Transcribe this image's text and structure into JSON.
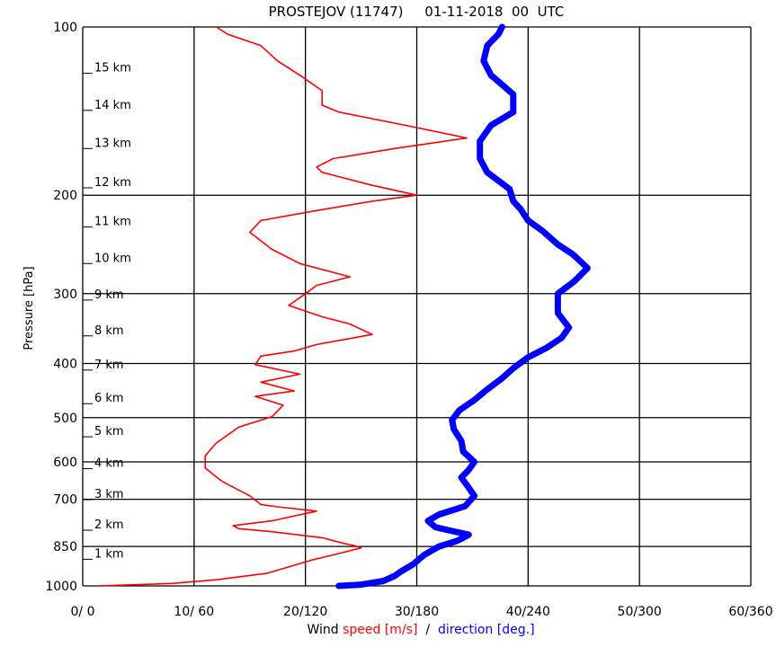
{
  "chart_data": {
    "type": "line",
    "title": "PROSTEJOV (11747)     01-11-2018  00  UTC",
    "ylabel": "Pressure [hPa]",
    "xlabel": {
      "prefix": "Wind",
      "speed": "speed",
      "speed_unit": "[m/s]",
      "sep": "/",
      "direction": "direction",
      "direction_unit": "[deg.]"
    },
    "x_ticks": [
      "0/ 0",
      "10/ 60",
      "20/120",
      "30/180",
      "40/240",
      "50/300",
      "60/360"
    ],
    "xlim_speed": [
      0,
      60
    ],
    "xlim_direction": [
      0,
      360
    ],
    "y_scale": "log",
    "ylim": [
      1000,
      100
    ],
    "y_ticks": [
      100,
      200,
      300,
      400,
      500,
      600,
      700,
      850,
      1000
    ],
    "height_labels": [
      {
        "label": "1 km",
        "p": 896
      },
      {
        "label": "2 km",
        "p": 795
      },
      {
        "label": "3 km",
        "p": 701
      },
      {
        "label": "4 km",
        "p": 617
      },
      {
        "label": "5 km",
        "p": 541
      },
      {
        "label": "6 km",
        "p": 472
      },
      {
        "label": "7 km",
        "p": 411
      },
      {
        "label": "8 km",
        "p": 357
      },
      {
        "label": "9 km",
        "p": 308
      },
      {
        "label": "10 km",
        "p": 265
      },
      {
        "label": "11 km",
        "p": 228
      },
      {
        "label": "12 km",
        "p": 194
      },
      {
        "label": "13 km",
        "p": 165
      },
      {
        "label": "14 km",
        "p": 141
      },
      {
        "label": "15 km",
        "p": 121
      }
    ],
    "series": [
      {
        "name": "speed",
        "unit": "m/s",
        "color": "#ff0000",
        "points": [
          [
            1.5,
            1000
          ],
          [
            8,
            990
          ],
          [
            12,
            975
          ],
          [
            16.5,
            950
          ],
          [
            18.5,
            925
          ],
          [
            20.5,
            900
          ],
          [
            23.5,
            870
          ],
          [
            25,
            855
          ],
          [
            24.5,
            848
          ],
          [
            23.5,
            840
          ],
          [
            21.5,
            820
          ],
          [
            17,
            800
          ],
          [
            14,
            790
          ],
          [
            13.5,
            780
          ],
          [
            17,
            765
          ],
          [
            21,
            735
          ],
          [
            17.5,
            722
          ],
          [
            16,
            715
          ],
          [
            15,
            690
          ],
          [
            12.5,
            650
          ],
          [
            11,
            615
          ],
          [
            11,
            585
          ],
          [
            12,
            555
          ],
          [
            14,
            520
          ],
          [
            17,
            498
          ],
          [
            18,
            475
          ],
          [
            15.5,
            458
          ],
          [
            19,
            448
          ],
          [
            16,
            432
          ],
          [
            19.5,
            418
          ],
          [
            15.5,
            402
          ],
          [
            16,
            388
          ],
          [
            19,
            380
          ],
          [
            21,
            370
          ],
          [
            26,
            355
          ],
          [
            24,
            340
          ],
          [
            21.5,
            330
          ],
          [
            18.5,
            315
          ],
          [
            20,
            300
          ],
          [
            21,
            290
          ],
          [
            24,
            280
          ],
          [
            19.5,
            265
          ],
          [
            17,
            250
          ],
          [
            15,
            233
          ],
          [
            16,
            222
          ],
          [
            21,
            213
          ],
          [
            26,
            205
          ],
          [
            30,
            200
          ],
          [
            26,
            192
          ],
          [
            21.5,
            182
          ],
          [
            21,
            178
          ],
          [
            22.5,
            172
          ],
          [
            28,
            165
          ],
          [
            34.5,
            158
          ],
          [
            29,
            150
          ],
          [
            23,
            142
          ],
          [
            21.5,
            138
          ],
          [
            21.5,
            130
          ],
          [
            19.5,
            122
          ],
          [
            17.5,
            115
          ],
          [
            16,
            108
          ],
          [
            13,
            103
          ],
          [
            12,
            100
          ]
        ]
      },
      {
        "name": "direction",
        "unit": "deg.",
        "color": "#0000ff",
        "points": [
          [
            138,
            1000
          ],
          [
            150,
            995
          ],
          [
            162,
            980
          ],
          [
            168,
            960
          ],
          [
            172,
            940
          ],
          [
            178,
            915
          ],
          [
            184,
            880
          ],
          [
            192,
            850
          ],
          [
            202,
            830
          ],
          [
            208,
            810
          ],
          [
            197,
            795
          ],
          [
            190,
            785
          ],
          [
            186,
            765
          ],
          [
            192,
            745
          ],
          [
            206,
            720
          ],
          [
            211,
            690
          ],
          [
            207,
            660
          ],
          [
            204,
            640
          ],
          [
            208,
            620
          ],
          [
            211,
            600
          ],
          [
            205,
            575
          ],
          [
            204,
            550
          ],
          [
            200,
            525
          ],
          [
            199,
            505
          ],
          [
            203,
            485
          ],
          [
            211,
            465
          ],
          [
            218,
            445
          ],
          [
            226,
            425
          ],
          [
            232,
            408
          ],
          [
            240,
            390
          ],
          [
            250,
            375
          ],
          [
            258,
            360
          ],
          [
            262,
            345
          ],
          [
            256,
            325
          ],
          [
            256,
            300
          ],
          [
            265,
            285
          ],
          [
            272,
            270
          ],
          [
            264,
            255
          ],
          [
            256,
            245
          ],
          [
            248,
            232
          ],
          [
            240,
            222
          ],
          [
            236,
            212
          ],
          [
            232,
            205
          ],
          [
            230,
            195
          ],
          [
            218,
            182
          ],
          [
            214,
            172
          ],
          [
            214,
            160
          ],
          [
            220,
            150
          ],
          [
            232,
            142
          ],
          [
            232,
            132
          ],
          [
            220,
            122
          ],
          [
            216,
            115
          ],
          [
            218,
            108
          ],
          [
            224,
            103
          ],
          [
            226,
            100
          ]
        ]
      }
    ]
  }
}
